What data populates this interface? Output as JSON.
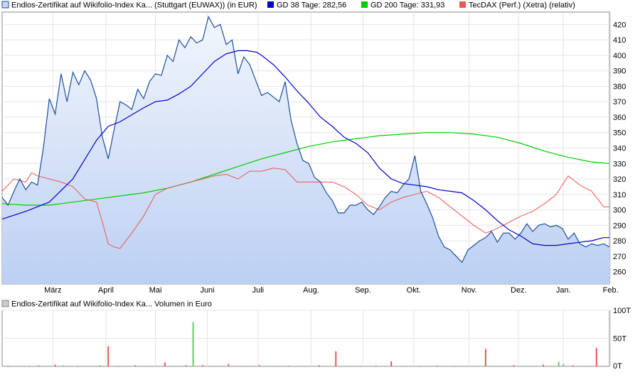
{
  "legend": [
    {
      "label": "Endlos-Zertifikat auf Wikifolio-Index Ka... (Stuttgart (EUWAX)) (in EUR)",
      "color": "#1b4f9c",
      "fill": "#c5d6f3"
    },
    {
      "label": "GD 38 Tage: 282,56",
      "color": "#0000cc"
    },
    {
      "label": "GD 200 Tage: 331,93",
      "color": "#00cc00"
    },
    {
      "label": "TecDAX (Perf.) (Xetra) (relativ)",
      "color": "#ee5555"
    }
  ],
  "volume_legend": {
    "label": "Endlos-Zertifikat auf Wikifolio-Index Ka... Volumen in Euro",
    "color": "#cccccc"
  },
  "chart_data": [
    {
      "type": "line",
      "ylim": [
        252,
        428
      ],
      "yticks": [
        260,
        270,
        280,
        290,
        300,
        310,
        320,
        330,
        340,
        350,
        360,
        370,
        380,
        390,
        400,
        410,
        420
      ],
      "xlim": [
        0,
        51.5
      ],
      "xticks": [
        {
          "label": "März",
          "x": 4.3
        },
        {
          "label": "April",
          "x": 8.8
        },
        {
          "label": "Mai",
          "x": 13.0
        },
        {
          "label": "Juni",
          "x": 17.4
        },
        {
          "label": "Juli",
          "x": 21.7
        },
        {
          "label": "Aug.",
          "x": 26.2
        },
        {
          "label": "Sep.",
          "x": 30.6
        },
        {
          "label": "Okt.",
          "x": 34.9
        },
        {
          "label": "Nov.",
          "x": 39.6
        },
        {
          "label": "Dez.",
          "x": 43.8
        },
        {
          "label": "Jan.",
          "x": 47.6
        },
        {
          "label": "Feb.",
          "x": 51.6
        }
      ],
      "grid": true,
      "series": [
        {
          "name": "Endlos-Zertifikat auf Wikifolio-Index Ka... (Stuttgart (EUWAX)) (in EUR)",
          "kind": "area",
          "x": [
            0,
            0.5,
            1,
            1.5,
            2,
            2.5,
            3,
            3.5,
            4,
            4.5,
            5,
            5.5,
            6,
            6.5,
            7,
            7.5,
            8,
            8.5,
            9,
            9.5,
            10,
            10.5,
            11,
            11.5,
            12,
            12.5,
            13,
            13.5,
            14,
            14.5,
            15,
            15.5,
            16,
            16.5,
            17,
            17.5,
            18,
            18.5,
            19,
            19.5,
            20,
            20.5,
            21,
            21.5,
            22,
            22.5,
            23,
            23.5,
            24,
            24.5,
            25,
            25.5,
            26,
            26.5,
            27,
            27.5,
            28,
            28.5,
            29,
            29.5,
            30,
            30.5,
            31,
            31.5,
            32,
            32.5,
            33,
            33.5,
            34,
            34.5,
            35,
            35.5,
            36,
            36.5,
            37,
            37.5,
            38,
            38.5,
            39,
            39.5,
            40,
            40.5,
            41,
            41.5,
            42,
            42.5,
            43,
            43.5,
            44,
            44.5,
            45,
            45.5,
            46,
            46.5,
            47,
            47.5,
            48,
            48.5,
            49,
            49.5,
            50,
            50.5,
            51,
            51.5
          ],
          "values": [
            308,
            303,
            312,
            320,
            313,
            318,
            316,
            340,
            372,
            362,
            388,
            370,
            389,
            381,
            390,
            384,
            372,
            347,
            333,
            352,
            370,
            368,
            365,
            378,
            372,
            383,
            388,
            387,
            400,
            396,
            410,
            405,
            412,
            408,
            410,
            425,
            418,
            420,
            407,
            410,
            388,
            399,
            394,
            384,
            374,
            376,
            373,
            370,
            383,
            358,
            343,
            332,
            330,
            321,
            318,
            311,
            306,
            298,
            298,
            303,
            303,
            305,
            300,
            297,
            302,
            308,
            312,
            311,
            316,
            320,
            335,
            312,
            304,
            295,
            283,
            276,
            274,
            270,
            266,
            274,
            277,
            280,
            282,
            286,
            279,
            285,
            285,
            281,
            285,
            291,
            286,
            290,
            291,
            289,
            290,
            288,
            281,
            285,
            278,
            276,
            278,
            277,
            278,
            276
          ]
        },
        {
          "name": "GD 38 Tage: 282,56",
          "kind": "line",
          "x": [
            0,
            2,
            4,
            6,
            8,
            9,
            10,
            12,
            13,
            14,
            15,
            16,
            17,
            18,
            19,
            20,
            20.8,
            21.6,
            22,
            23,
            24,
            25,
            26,
            27,
            28,
            29,
            30,
            31,
            32,
            33,
            34,
            35,
            36,
            37,
            38,
            39,
            40,
            41,
            42,
            43,
            44,
            45,
            46,
            47,
            48,
            49,
            50,
            51,
            51.5
          ],
          "values": [
            294,
            299,
            305,
            320,
            345,
            354,
            357,
            366,
            370,
            371,
            375,
            380,
            388,
            396,
            401,
            403,
            403,
            402,
            400,
            394,
            386,
            377,
            369,
            360,
            354,
            347,
            343,
            337,
            327,
            320,
            317,
            316,
            315,
            313,
            312,
            311,
            306,
            300,
            293,
            287,
            283,
            278,
            277,
            277,
            278,
            279,
            280,
            282,
            282
          ]
        },
        {
          "name": "GD 200 Tage: 331,93",
          "kind": "line",
          "x": [
            0,
            2,
            4,
            6,
            8,
            10,
            12,
            14,
            16,
            18,
            20,
            22,
            24,
            26,
            28,
            30,
            32,
            34,
            36,
            38,
            40,
            42,
            44,
            46,
            48,
            50,
            51.5
          ],
          "values": [
            304,
            303,
            303,
            305,
            307,
            309,
            311,
            314,
            318,
            323,
            328,
            333,
            337,
            341,
            344,
            346,
            348,
            349,
            350,
            350,
            349,
            347,
            343,
            338,
            334,
            331,
            330
          ]
        },
        {
          "name": "TecDAX (Perf.) (Xetra) (relativ)",
          "kind": "line",
          "x": [
            0,
            1,
            2,
            2.5,
            3,
            4,
            5,
            6,
            7,
            8,
            8.5,
            9,
            9.5,
            10,
            11,
            12,
            13,
            14,
            15,
            16,
            17,
            18,
            19,
            20,
            21,
            22,
            23,
            24,
            25,
            26,
            27,
            28,
            29,
            30,
            31,
            32,
            33,
            34,
            35,
            36,
            37,
            38,
            39,
            40,
            41,
            42,
            43,
            44,
            45,
            46,
            47,
            48,
            49,
            50,
            51,
            51.5
          ],
          "values": [
            312,
            320,
            318,
            324,
            322,
            320,
            318,
            315,
            307,
            305,
            292,
            278,
            276,
            275,
            285,
            296,
            310,
            314,
            316,
            318,
            320,
            322,
            323,
            320,
            325,
            325,
            327,
            326,
            318,
            318,
            318,
            318,
            315,
            310,
            303,
            300,
            305,
            308,
            310,
            312,
            308,
            302,
            296,
            290,
            285,
            288,
            292,
            296,
            299,
            304,
            310,
            322,
            316,
            312,
            302,
            302
          ]
        }
      ]
    },
    {
      "type": "bar",
      "title": "",
      "ylim": [
        0,
        100
      ],
      "yticks": [
        {
          "value": 0,
          "label": "0T"
        },
        {
          "value": 50,
          "label": "50T"
        },
        {
          "value": 100,
          "label": "100T"
        }
      ],
      "bars": [
        {
          "x": 0.5,
          "v": 1,
          "c": "#ee5555"
        },
        {
          "x": 2.3,
          "v": 1,
          "c": "#ee5555"
        },
        {
          "x": 3.1,
          "v": 2,
          "c": "#66cc66"
        },
        {
          "x": 4.5,
          "v": 3,
          "c": "#ee5555"
        },
        {
          "x": 5.2,
          "v": 2,
          "c": "#66cc66"
        },
        {
          "x": 6.4,
          "v": 1,
          "c": "#ee5555"
        },
        {
          "x": 8.3,
          "v": 2,
          "c": "#66cc66"
        },
        {
          "x": 9.0,
          "v": 36,
          "c": "#ee5555"
        },
        {
          "x": 9.8,
          "v": 1,
          "c": "#ee5555"
        },
        {
          "x": 11.3,
          "v": 2,
          "c": "#ee5555"
        },
        {
          "x": 12.1,
          "v": 1,
          "c": "#66cc66"
        },
        {
          "x": 13.8,
          "v": 7,
          "c": "#ee5555"
        },
        {
          "x": 14.4,
          "v": 1,
          "c": "#66cc66"
        },
        {
          "x": 15.6,
          "v": 2,
          "c": "#ee5555"
        },
        {
          "x": 16.2,
          "v": 79,
          "c": "#66cc66"
        },
        {
          "x": 17.0,
          "v": 2,
          "c": "#ee5555"
        },
        {
          "x": 18.1,
          "v": 1,
          "c": "#66cc66"
        },
        {
          "x": 19.2,
          "v": 4,
          "c": "#ee5555"
        },
        {
          "x": 20.5,
          "v": 1,
          "c": "#66cc66"
        },
        {
          "x": 21.8,
          "v": 2,
          "c": "#ee5555"
        },
        {
          "x": 23.0,
          "v": 1,
          "c": "#66cc66"
        },
        {
          "x": 24.3,
          "v": 1,
          "c": "#ee5555"
        },
        {
          "x": 25.6,
          "v": 1,
          "c": "#66cc66"
        },
        {
          "x": 26.9,
          "v": 2,
          "c": "#ee5555"
        },
        {
          "x": 28.3,
          "v": 27,
          "c": "#ee5555"
        },
        {
          "x": 29.1,
          "v": 1,
          "c": "#66cc66"
        },
        {
          "x": 30.4,
          "v": 1,
          "c": "#ee5555"
        },
        {
          "x": 31.7,
          "v": 2,
          "c": "#66cc66"
        },
        {
          "x": 33.0,
          "v": 9,
          "c": "#ee5555"
        },
        {
          "x": 34.2,
          "v": 1,
          "c": "#66cc66"
        },
        {
          "x": 35.5,
          "v": 1,
          "c": "#ee5555"
        },
        {
          "x": 36.9,
          "v": 2,
          "c": "#66cc66"
        },
        {
          "x": 38.3,
          "v": 1,
          "c": "#ee5555"
        },
        {
          "x": 39.4,
          "v": 1,
          "c": "#66cc66"
        },
        {
          "x": 41.0,
          "v": 31,
          "c": "#ee5555"
        },
        {
          "x": 42.1,
          "v": 1,
          "c": "#66cc66"
        },
        {
          "x": 43.4,
          "v": 2,
          "c": "#ee5555"
        },
        {
          "x": 44.8,
          "v": 1,
          "c": "#66cc66"
        },
        {
          "x": 45.9,
          "v": 3,
          "c": "#ee5555"
        },
        {
          "x": 47.2,
          "v": 8,
          "c": "#66cc66"
        },
        {
          "x": 47.6,
          "v": 4,
          "c": "#66cc66"
        },
        {
          "x": 48.4,
          "v": 2,
          "c": "#ee5555"
        },
        {
          "x": 49.6,
          "v": 1,
          "c": "#66cc66"
        },
        {
          "x": 50.4,
          "v": 33,
          "c": "#ee5555"
        },
        {
          "x": 51.1,
          "v": 1,
          "c": "#66cc66"
        }
      ]
    }
  ]
}
